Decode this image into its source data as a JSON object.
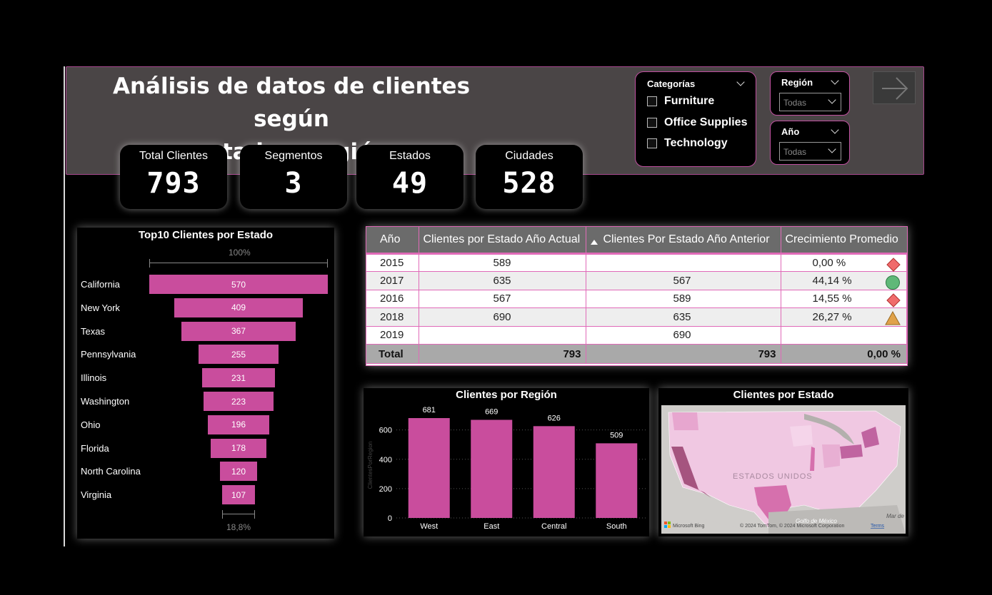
{
  "title_line1": "Análisis de datos de clientes según",
  "title_line2": "estado y región",
  "kpis": [
    {
      "label": "Total Clientes",
      "value": "793"
    },
    {
      "label": "Segmentos",
      "value": "3"
    },
    {
      "label": "Estados",
      "value": "49"
    },
    {
      "label": "Ciudades",
      "value": "528"
    }
  ],
  "categories": {
    "title": "Categorías",
    "items": [
      "Furniture",
      "Office Supplies",
      "Technology"
    ]
  },
  "slicers": {
    "region": {
      "title": "Región",
      "value": "Todas"
    },
    "year": {
      "title": "Año",
      "value": "Todas"
    }
  },
  "colors": {
    "accent": "#c94d9d",
    "header_bg": "#4a4546",
    "border": "#e06ab8"
  },
  "funnel": {
    "title": "Top10 Clientes por Estado",
    "top_pct": "100%",
    "bottom_pct": "18,8%"
  },
  "table": {
    "headers": [
      "Año",
      "Clientes por Estado Año Actual",
      "Clientes Por Estado Año Anterior",
      "Crecimiento Promedio"
    ],
    "rows": [
      {
        "year": "2015",
        "current": "589",
        "previous": "",
        "growth": "0,00 %",
        "indicator": "red-diamond"
      },
      {
        "year": "2017",
        "current": "635",
        "previous": "567",
        "growth": "44,14 %",
        "indicator": "green-circle"
      },
      {
        "year": "2016",
        "current": "567",
        "previous": "589",
        "growth": "14,55 %",
        "indicator": "red-diamond"
      },
      {
        "year": "2018",
        "current": "690",
        "previous": "635",
        "growth": "26,27 %",
        "indicator": "yellow-triangle"
      },
      {
        "year": "2019",
        "current": "",
        "previous": "690",
        "growth": "",
        "indicator": ""
      }
    ],
    "total": {
      "label": "Total",
      "current": "793",
      "previous": "793",
      "growth": "0,00 %"
    }
  },
  "map": {
    "title": "Clientes por Estado",
    "country_label": "ESTADOS UNIDOS",
    "gulf_label": "Golfo de México",
    "sea_label": "Mar de",
    "bing_label": "Microsoft Bing",
    "copyright": "© 2024 TomTom, © 2024 Microsoft Corporation",
    "terms": "Terms"
  },
  "chart_data": [
    {
      "type": "bar",
      "orientation": "funnel",
      "title": "Top10 Clientes por Estado",
      "categories": [
        "California",
        "New York",
        "Texas",
        "Pennsylvania",
        "Illinois",
        "Washington",
        "Ohio",
        "Florida",
        "North Carolina",
        "Virginia"
      ],
      "values": [
        570,
        409,
        367,
        255,
        231,
        223,
        196,
        178,
        120,
        107
      ]
    },
    {
      "type": "bar",
      "title": "Clientes por Región",
      "categories": [
        "West",
        "East",
        "Central",
        "South"
      ],
      "values": [
        681,
        669,
        626,
        509
      ],
      "ylabel": "ClientesPorRegion",
      "yticks": [
        0,
        200,
        400,
        600
      ],
      "ylim": [
        0,
        720
      ],
      "grid": true
    }
  ]
}
